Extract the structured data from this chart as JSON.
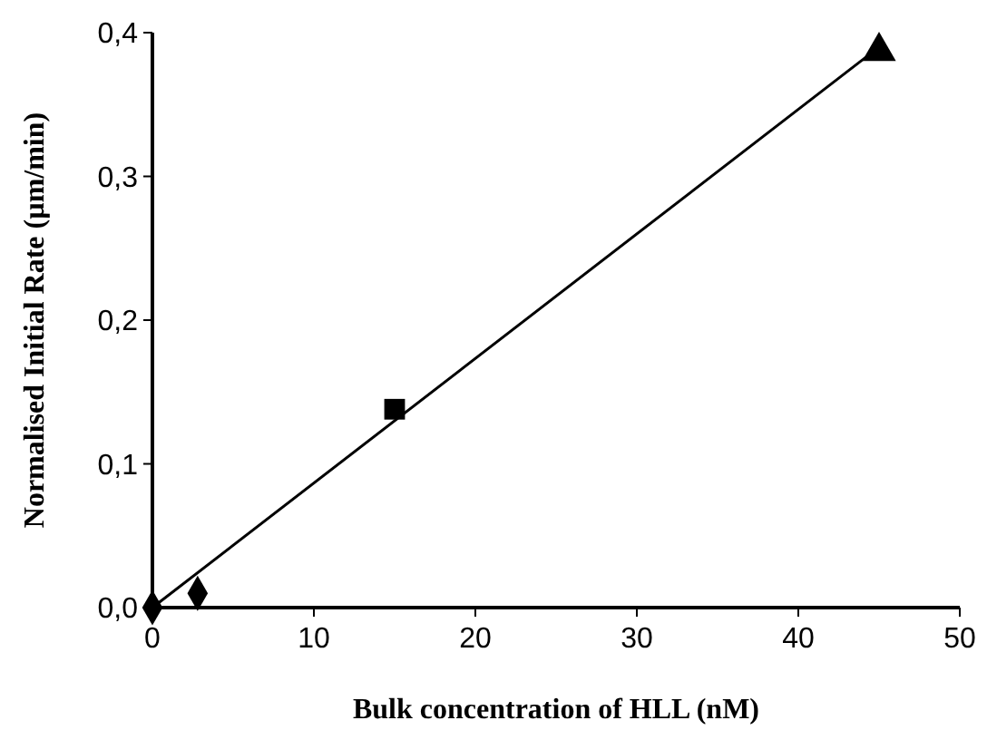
{
  "chart_data": {
    "type": "scatter",
    "xlabel": "Bulk concentration of HLL (nM)",
    "ylabel": "Normalised Initial Rate (µm/min)",
    "xlim": [
      0,
      50
    ],
    "xticks": [
      0,
      10,
      20,
      30,
      40,
      50
    ],
    "ylim": [
      0,
      0.4
    ],
    "yticks": [
      {
        "value": 0,
        "label": "0,0"
      },
      {
        "value": 0.1,
        "label": "0,1"
      },
      {
        "value": 0.2,
        "label": "0,2"
      },
      {
        "value": 0.3,
        "label": "0,3"
      },
      {
        "value": 0.4,
        "label": "0,4"
      }
    ],
    "grid": false,
    "series": [
      {
        "marker": "diamond",
        "color": "#000000",
        "x": [
          0,
          2.8
        ],
        "values": [
          0,
          0.01
        ]
      },
      {
        "marker": "square",
        "color": "#000000",
        "x": [
          15
        ],
        "values": [
          0.138
        ]
      },
      {
        "marker": "triangle",
        "color": "#000000",
        "x": [
          45
        ],
        "values": [
          0.387
        ]
      },
      {
        "type": "line",
        "marker": "none",
        "line_style": "solid",
        "color": "#000000",
        "x": [
          0,
          45
        ],
        "values": [
          0,
          0.39
        ]
      }
    ]
  }
}
